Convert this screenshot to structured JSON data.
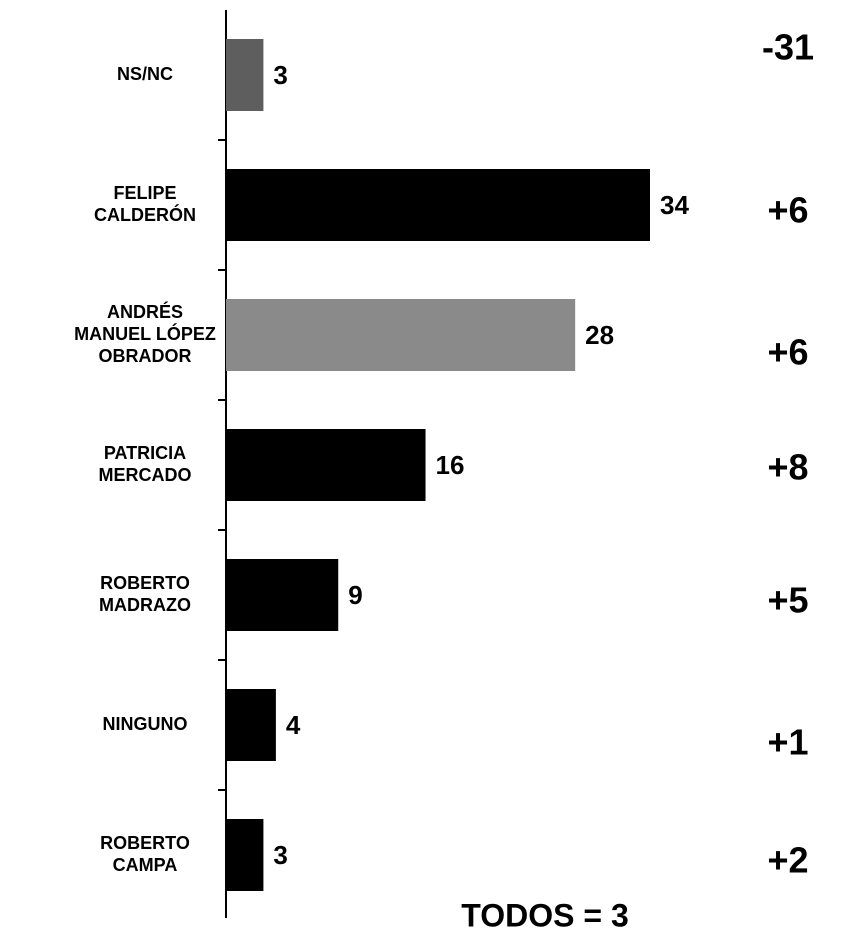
{
  "chart_data": {
    "type": "hbar",
    "categories": [
      [
        "NS/NC"
      ],
      [
        "FELIPE",
        "CALDERÓN"
      ],
      [
        "ANDRÉS",
        "MANUEL LÓPEZ",
        "OBRADOR"
      ],
      [
        "PATRICIA",
        "MERCADO"
      ],
      [
        "ROBERTO",
        "MADRAZO"
      ],
      [
        "NINGUNO"
      ],
      [
        "ROBERTO",
        "CAMPA"
      ]
    ],
    "values": [
      3,
      34,
      28,
      16,
      9,
      4,
      3
    ],
    "colors": [
      "#5e5e5e",
      "#000000",
      "#8a8a8a",
      "#000000",
      "#000000",
      "#000000",
      "#000000"
    ],
    "changes": [
      "-31",
      "+6",
      "+6",
      "+8",
      "+5",
      "+1",
      "+2"
    ],
    "xlim": [
      0,
      34
    ],
    "annotation": "TODOS = 3"
  }
}
